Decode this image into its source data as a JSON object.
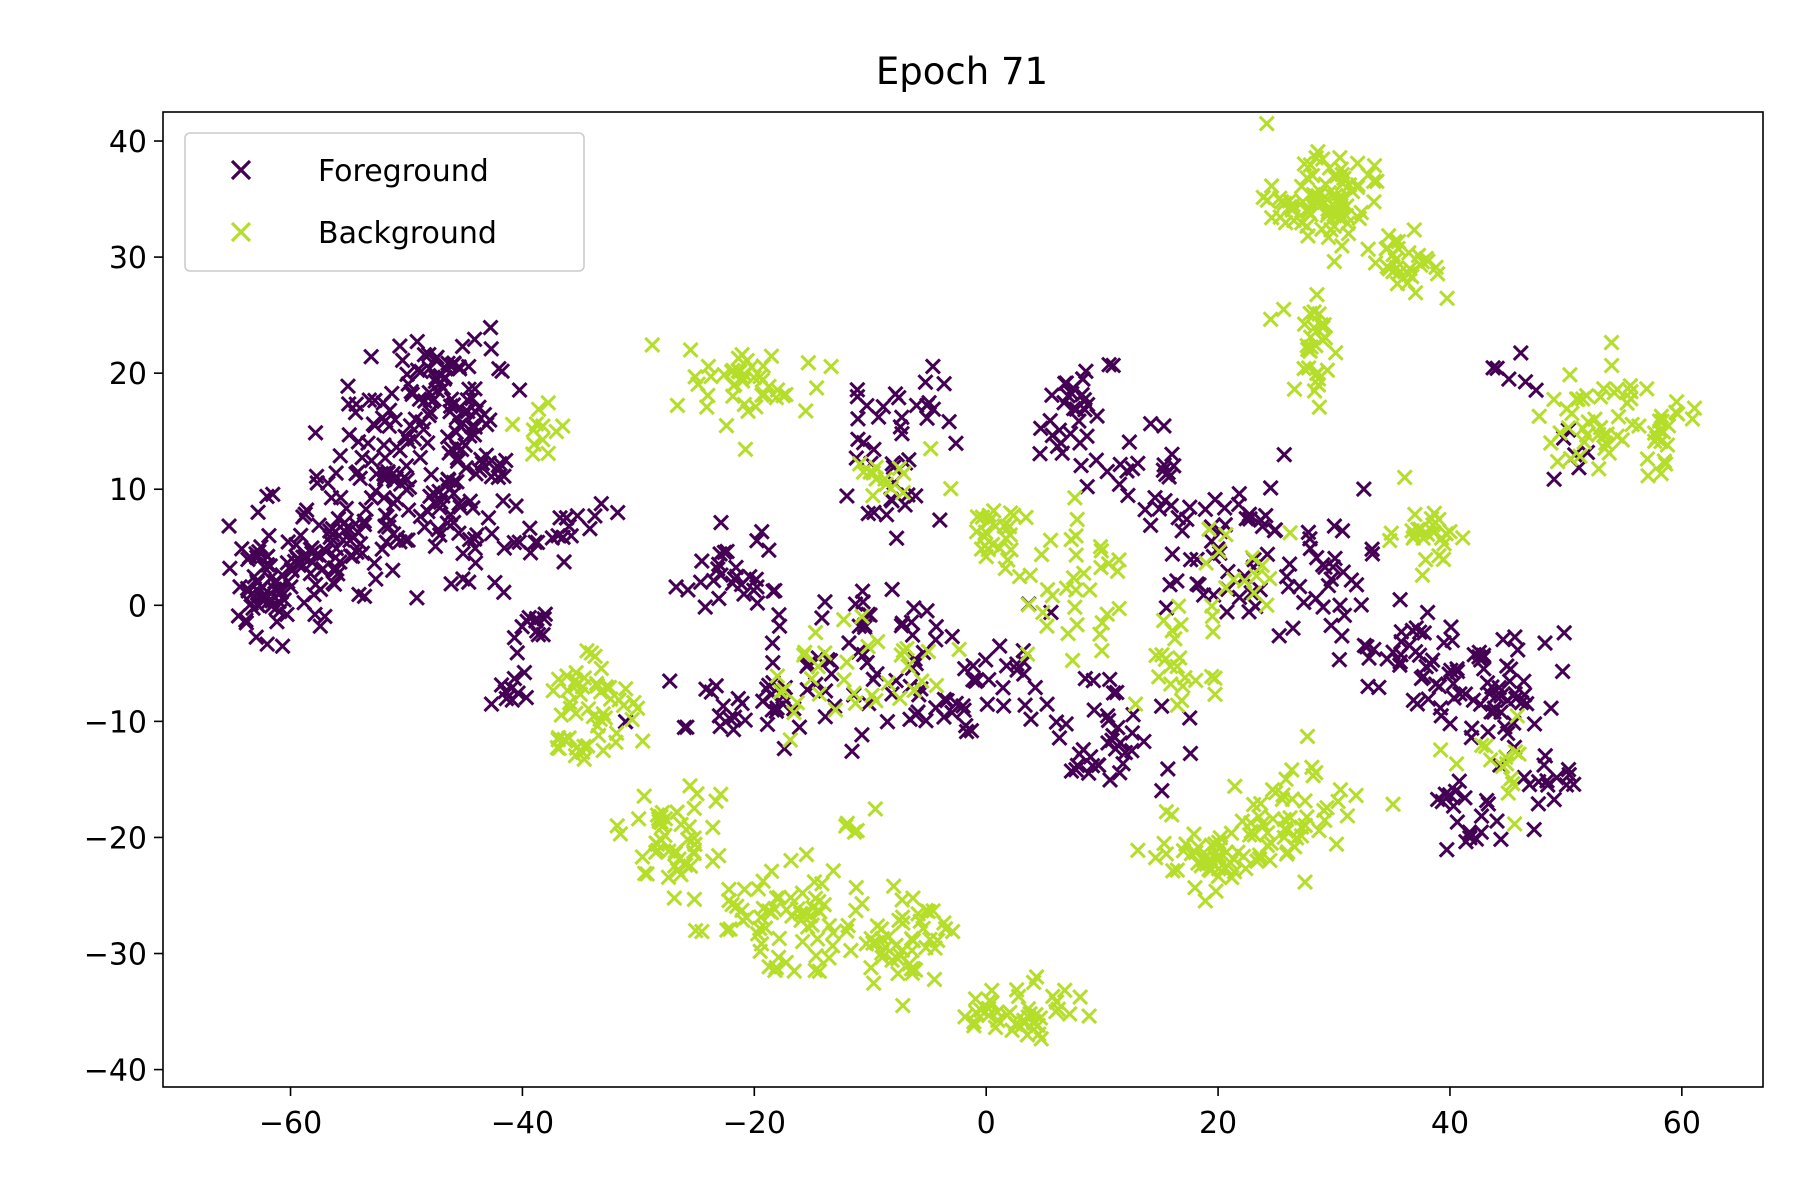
{
  "chart_data": {
    "type": "scatter",
    "title": "Epoch 71",
    "xlabel": "",
    "ylabel": "",
    "xlim": [
      -71,
      67
    ],
    "ylim": [
      -41.5,
      42.5
    ],
    "xticks": [
      -60,
      -40,
      -20,
      0,
      20,
      40,
      60
    ],
    "yticks": [
      -40,
      -30,
      -20,
      -10,
      0,
      10,
      20,
      30,
      40
    ],
    "xtick_labels": [
      "−60",
      "−40",
      "−20",
      "0",
      "20",
      "40",
      "60"
    ],
    "ytick_labels": [
      "−40",
      "−30",
      "−20",
      "−10",
      "0",
      "10",
      "20",
      "30",
      "40"
    ],
    "grid": false,
    "legend_position": "top-left",
    "marker": "x",
    "series": [
      {
        "name": "Foreground",
        "color": "#440154",
        "clusters": [
          {
            "center": [
              -62,
              2
            ],
            "spread": [
              2.5,
              3.5
            ],
            "n": 70
          },
          {
            "center": [
              -56,
              4
            ],
            "spread": [
              3,
              3
            ],
            "n": 60
          },
          {
            "center": [
              -51,
              12
            ],
            "spread": [
              4,
              5
            ],
            "n": 110
          },
          {
            "center": [
              -47,
              19
            ],
            "spread": [
              3,
              3
            ],
            "n": 55
          },
          {
            "center": [
              -44,
              10
            ],
            "spread": [
              3,
              4
            ],
            "n": 50
          },
          {
            "center": [
              -37,
              6
            ],
            "spread": [
              3,
              2
            ],
            "n": 20
          },
          {
            "center": [
              -39,
              -2
            ],
            "spread": [
              1.5,
              1.5
            ],
            "n": 12
          },
          {
            "center": [
              -41,
              -8
            ],
            "spread": [
              1.5,
              1.5
            ],
            "n": 10
          },
          {
            "center": [
              -21,
              3
            ],
            "spread": [
              3,
              3
            ],
            "n": 30
          },
          {
            "center": [
              -20,
              -8
            ],
            "spread": [
              5,
              2
            ],
            "n": 40
          },
          {
            "center": [
              -10,
              -3
            ],
            "spread": [
              5,
              3
            ],
            "n": 40
          },
          {
            "center": [
              -7,
              15
            ],
            "spread": [
              3,
              3
            ],
            "n": 30
          },
          {
            "center": [
              -9,
              9
            ],
            "spread": [
              3,
              3
            ],
            "n": 12
          },
          {
            "center": [
              -4,
              -9
            ],
            "spread": [
              4,
              3
            ],
            "n": 25
          },
          {
            "center": [
              3,
              -6
            ],
            "spread": [
              4,
              3
            ],
            "n": 20
          },
          {
            "center": [
              8,
              16
            ],
            "spread": [
              2.5,
              3.5
            ],
            "n": 35
          },
          {
            "center": [
              14,
              10
            ],
            "spread": [
              3,
              4
            ],
            "n": 25
          },
          {
            "center": [
              21,
              4
            ],
            "spread": [
              4,
              5
            ],
            "n": 50
          },
          {
            "center": [
              10,
              -12
            ],
            "spread": [
              4,
              3
            ],
            "n": 40
          },
          {
            "center": [
              30,
              2
            ],
            "spread": [
              3,
              4
            ],
            "n": 30
          },
          {
            "center": [
              38,
              -5
            ],
            "spread": [
              3,
              3
            ],
            "n": 40
          },
          {
            "center": [
              44,
              -8
            ],
            "spread": [
              3,
              4
            ],
            "n": 50
          },
          {
            "center": [
              41,
              -18
            ],
            "spread": [
              2,
              2
            ],
            "n": 20
          },
          {
            "center": [
              48,
              -15
            ],
            "spread": [
              2,
              2
            ],
            "n": 15
          },
          {
            "center": [
              46,
              20
            ],
            "spread": [
              2,
              1
            ],
            "n": 6
          },
          {
            "center": [
              50,
              13
            ],
            "spread": [
              1.5,
              1.5
            ],
            "n": 6
          }
        ]
      },
      {
        "name": "Background",
        "color": "#b5de2b",
        "clusters": [
          {
            "center": [
              29,
              35
            ],
            "spread": [
              3,
              2.5
            ],
            "n": 90
          },
          {
            "center": [
              36,
              30
            ],
            "spread": [
              2,
              2
            ],
            "n": 30
          },
          {
            "center": [
              28,
              22
            ],
            "spread": [
              2,
              3
            ],
            "n": 30
          },
          {
            "center": [
              -21,
              19
            ],
            "spread": [
              4,
              2
            ],
            "n": 45
          },
          {
            "center": [
              -39,
              15
            ],
            "spread": [
              1.5,
              1.5
            ],
            "n": 12
          },
          {
            "center": [
              -34,
              -9
            ],
            "spread": [
              3,
              3
            ],
            "n": 55
          },
          {
            "center": [
              -27,
              -19
            ],
            "spread": [
              2.5,
              3.5
            ],
            "n": 50
          },
          {
            "center": [
              -17,
              -27
            ],
            "spread": [
              4,
              3
            ],
            "n": 70
          },
          {
            "center": [
              -7,
              -29
            ],
            "spread": [
              3,
              3
            ],
            "n": 50
          },
          {
            "center": [
              3,
              -35
            ],
            "spread": [
              4,
              1.5
            ],
            "n": 45
          },
          {
            "center": [
              1,
              6
            ],
            "spread": [
              2,
              2
            ],
            "n": 25
          },
          {
            "center": [
              7,
              2
            ],
            "spread": [
              5,
              4
            ],
            "n": 35
          },
          {
            "center": [
              -9,
              11
            ],
            "spread": [
              3,
              2
            ],
            "n": 15
          },
          {
            "center": [
              -12,
              -6
            ],
            "spread": [
              6,
              3
            ],
            "n": 35
          },
          {
            "center": [
              19,
              -22
            ],
            "spread": [
              3,
              2
            ],
            "n": 50
          },
          {
            "center": [
              27,
              -18
            ],
            "spread": [
              4,
              3
            ],
            "n": 50
          },
          {
            "center": [
              38,
              6
            ],
            "spread": [
              2,
              2
            ],
            "n": 25
          },
          {
            "center": [
              53,
              17
            ],
            "spread": [
              3,
              3
            ],
            "n": 40
          },
          {
            "center": [
              58,
              15
            ],
            "spread": [
              2,
              2
            ],
            "n": 25
          },
          {
            "center": [
              16,
              -5
            ],
            "spread": [
              3,
              3
            ],
            "n": 25
          },
          {
            "center": [
              24,
              3
            ],
            "spread": [
              3,
              3
            ],
            "n": 15
          },
          {
            "center": [
              44,
              -14
            ],
            "spread": [
              3,
              3
            ],
            "n": 15
          },
          {
            "center": [
              -11,
              -19
            ],
            "spread": [
              1,
              1
            ],
            "n": 5
          }
        ]
      }
    ]
  }
}
